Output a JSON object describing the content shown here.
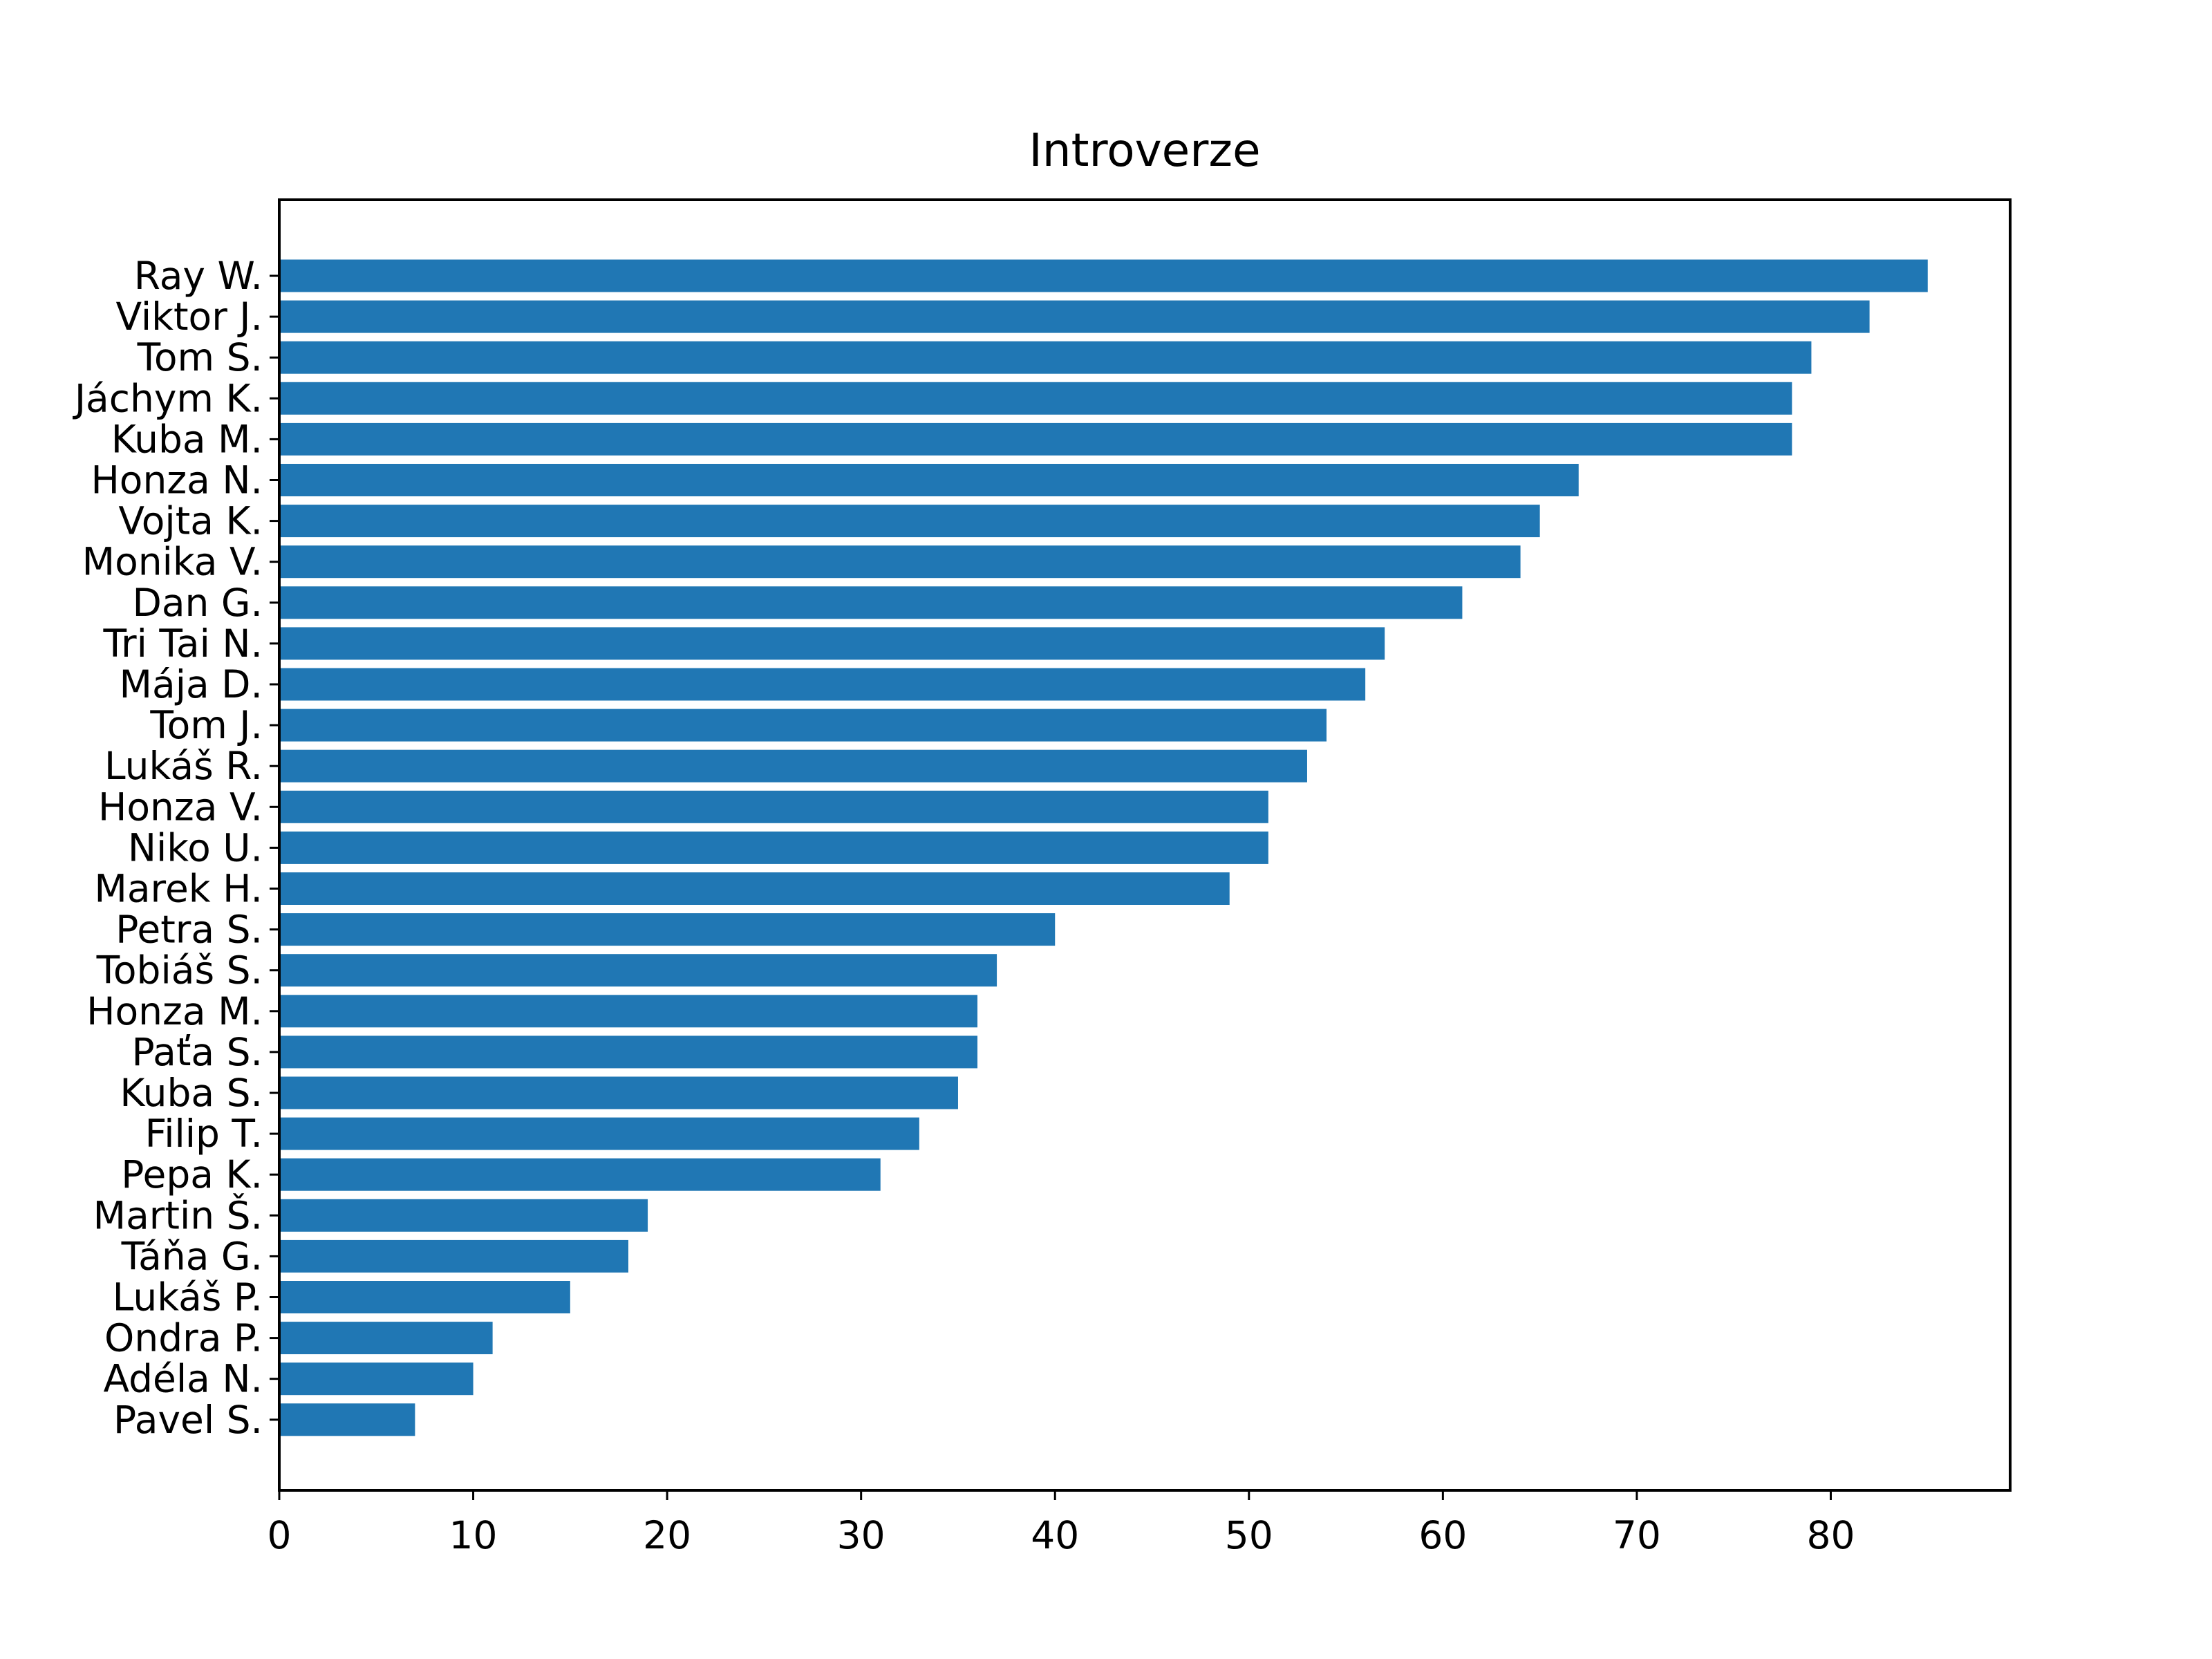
{
  "chart_data": {
    "type": "bar",
    "orientation": "horizontal",
    "title": "Introverze",
    "xlabel": "",
    "ylabel": "",
    "categories": [
      "Ray W.",
      "Viktor J.",
      "Tom S.",
      "Jáchym K.",
      "Kuba M.",
      "Honza N.",
      "Vojta K.",
      "Monika V.",
      "Dan G.",
      "Tri Tai N.",
      "Mája D.",
      "Tom J.",
      "Lukáš R.",
      "Honza V.",
      "Niko U.",
      "Marek H.",
      "Petra S.",
      "Tobiáš S.",
      "Honza M.",
      "Paťa S.",
      "Kuba S.",
      "Filip T.",
      "Pepa K.",
      "Martin Š.",
      "Táňa G.",
      "Lukáš P.",
      "Ondra P.",
      "Adéla N.",
      "Pavel S."
    ],
    "values": [
      85,
      82,
      79,
      78,
      78,
      67,
      65,
      64,
      61,
      57,
      56,
      54,
      53,
      51,
      51,
      49,
      40,
      37,
      36,
      36,
      35,
      33,
      31,
      19,
      18,
      15,
      11,
      10,
      7
    ],
    "xlim": [
      0,
      89.25
    ],
    "xticks": [
      0,
      10,
      20,
      30,
      40,
      50,
      60,
      70,
      80
    ],
    "grid": false,
    "legend": "none",
    "bar_color": "#2077b4"
  }
}
